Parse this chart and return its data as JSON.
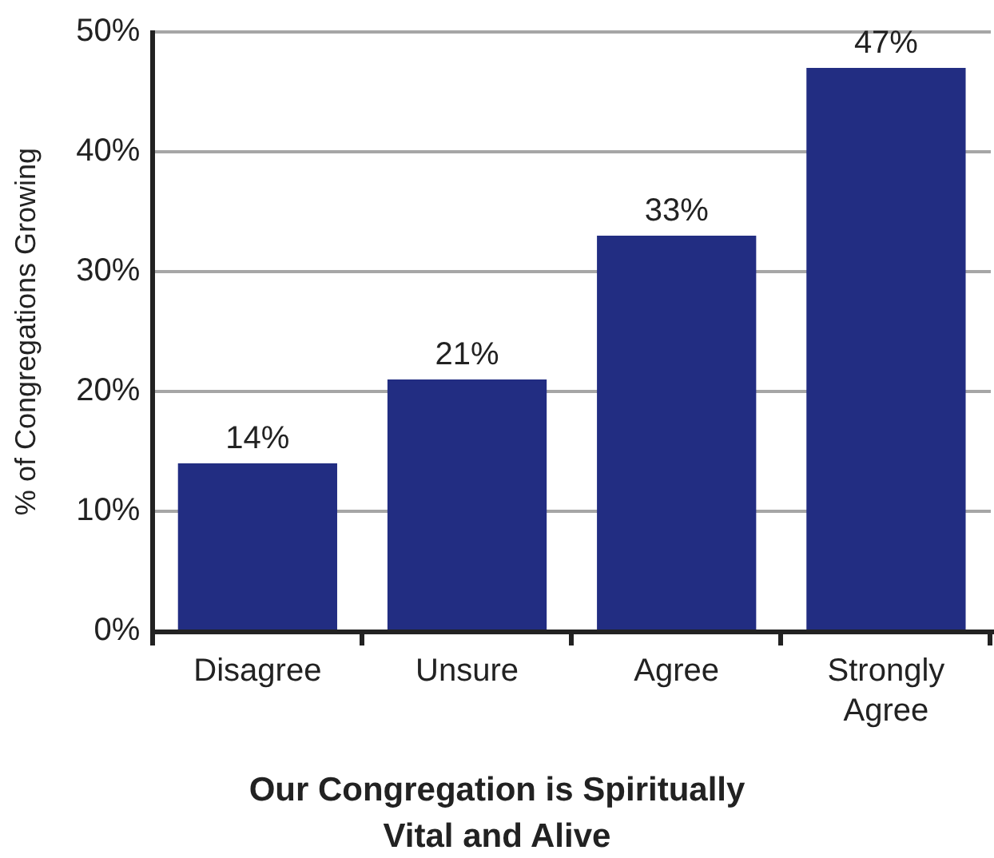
{
  "chart_data": {
    "type": "bar",
    "xlabel": "Our Congregation is Spiritually Vital and Alive",
    "ylabel": "% of Congregations Growing",
    "categories": [
      "Disagree",
      "Unsure",
      "Agree",
      "Strongly Agree"
    ],
    "values": [
      14,
      21,
      33,
      47
    ],
    "color": "#222d82",
    "value_labels": [
      "14%",
      "21%",
      "33%",
      "47%"
    ],
    "ylim": [
      0,
      50
    ],
    "yticks": [
      {
        "value": 0,
        "label": "0%"
      },
      {
        "value": 10,
        "label": "10%"
      },
      {
        "value": 20,
        "label": "20%"
      },
      {
        "value": 30,
        "label": "30%"
      },
      {
        "value": 40,
        "label": "40%"
      },
      {
        "value": 50,
        "label": "50%"
      }
    ],
    "grid": "y"
  }
}
